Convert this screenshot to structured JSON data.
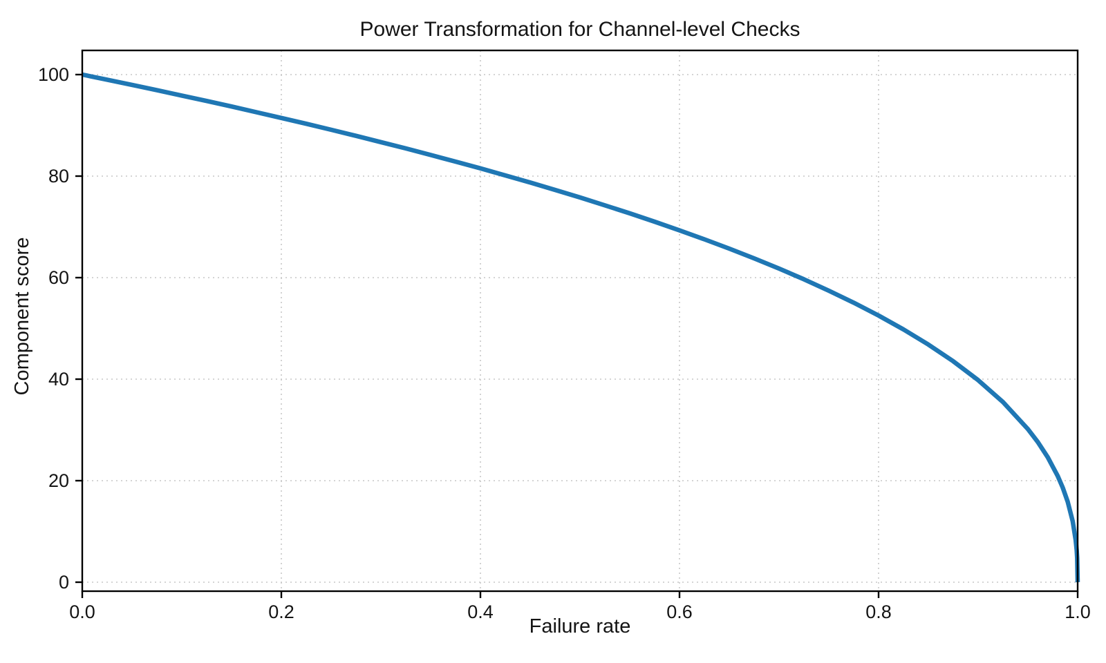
{
  "figure": {
    "background": "#ffffff"
  },
  "chart_data": {
    "type": "line",
    "title": "Power Transformation for Channel-level Checks",
    "xlabel": "Failure rate",
    "ylabel": "Component score",
    "xlim": [
      0.0,
      1.0
    ],
    "ylim": [
      0,
      100
    ],
    "xticks": [
      0.0,
      0.2,
      0.4,
      0.6,
      0.8,
      1.0
    ],
    "xtick_labels": [
      "0.0",
      "0.2",
      "0.4",
      "0.6",
      "0.8",
      "1.0"
    ],
    "yticks": [
      0,
      20,
      40,
      60,
      80,
      100
    ],
    "ytick_labels": [
      "0",
      "20",
      "40",
      "60",
      "80",
      "100"
    ],
    "grid": {
      "visible": true,
      "style": "dotted",
      "which": "both"
    },
    "legend_position": "none",
    "series": [
      {
        "name": "component-score",
        "color": "#1f77b4",
        "line_width": 6.5,
        "points": [
          [
            0.0,
            100.0
          ],
          [
            0.025,
            98.99
          ],
          [
            0.05,
            97.97
          ],
          [
            0.075,
            96.93
          ],
          [
            0.1,
            95.87
          ],
          [
            0.125,
            94.8
          ],
          [
            0.15,
            93.71
          ],
          [
            0.175,
            92.59
          ],
          [
            0.2,
            91.46
          ],
          [
            0.225,
            90.31
          ],
          [
            0.25,
            89.13
          ],
          [
            0.275,
            87.93
          ],
          [
            0.3,
            86.7
          ],
          [
            0.325,
            85.45
          ],
          [
            0.35,
            84.17
          ],
          [
            0.375,
            82.86
          ],
          [
            0.4,
            81.52
          ],
          [
            0.425,
            80.14
          ],
          [
            0.45,
            78.73
          ],
          [
            0.475,
            77.28
          ],
          [
            0.5,
            75.79
          ],
          [
            0.525,
            74.25
          ],
          [
            0.55,
            72.66
          ],
          [
            0.575,
            71.02
          ],
          [
            0.6,
            69.31
          ],
          [
            0.625,
            67.55
          ],
          [
            0.65,
            65.71
          ],
          [
            0.675,
            63.79
          ],
          [
            0.7,
            61.78
          ],
          [
            0.725,
            59.67
          ],
          [
            0.75,
            57.43
          ],
          [
            0.775,
            55.06
          ],
          [
            0.8,
            52.53
          ],
          [
            0.825,
            49.8
          ],
          [
            0.85,
            46.82
          ],
          [
            0.875,
            43.53
          ],
          [
            0.9,
            39.81
          ],
          [
            0.925,
            35.48
          ],
          [
            0.95,
            30.17
          ],
          [
            0.96,
            27.6
          ],
          [
            0.97,
            24.6
          ],
          [
            0.98,
            20.91
          ],
          [
            0.985,
            18.64
          ],
          [
            0.99,
            15.85
          ],
          [
            0.995,
            12.01
          ],
          [
            0.998,
            8.33
          ],
          [
            0.999,
            6.31
          ],
          [
            0.9995,
            4.78
          ],
          [
            1.0,
            0.0
          ]
        ]
      }
    ]
  },
  "style": {
    "line_color": "#1f77b4",
    "grid_color": "#c6c6c6",
    "spine_color": "#000000",
    "text_color": "#141414"
  }
}
